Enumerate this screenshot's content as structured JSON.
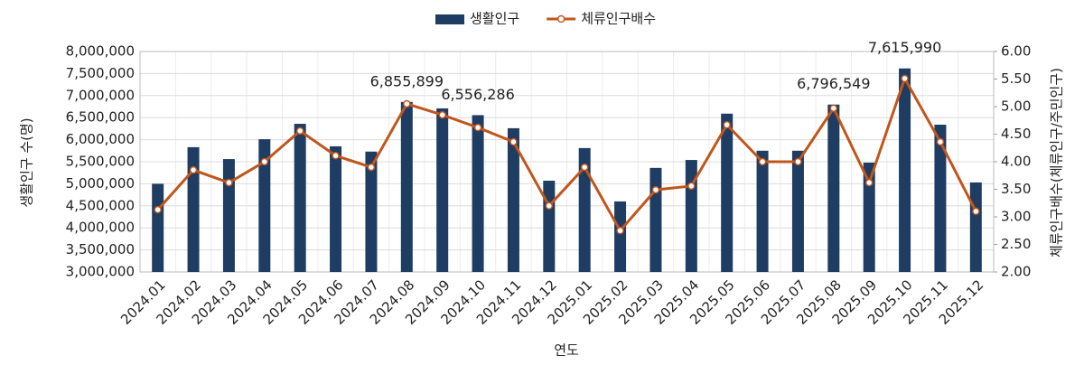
{
  "chart_data": {
    "type": "bar-line",
    "x_label": "연도",
    "y_label": "생활인구 수(명)",
    "y2_label": "체류인구배수(체류인구/주민인구)",
    "categories": [
      "2024.01",
      "2024.02",
      "2024.03",
      "2024.04",
      "2024.05",
      "2024.06",
      "2024.07",
      "2024.08",
      "2024.09",
      "2024.10",
      "2024.11",
      "2024.12",
      "2025.01",
      "2025.02",
      "2025.03",
      "2025.04",
      "2025.05",
      "2025.06",
      "2025.07",
      "2025.08",
      "2025.09",
      "2025.10",
      "2025.11",
      "2025.12"
    ],
    "series": [
      {
        "name": "생활인구",
        "type": "bar",
        "axis": "y",
        "color": "#1f3c63",
        "values": [
          5000000,
          5830000,
          5560000,
          6010000,
          6360000,
          5850000,
          5730000,
          6855899,
          6710000,
          6556286,
          6260000,
          5070000,
          5810000,
          4600000,
          5360000,
          5540000,
          6590000,
          5750000,
          5750000,
          6796549,
          5480000,
          7615990,
          6340000,
          5030000
        ],
        "value_labels": [
          null,
          null,
          null,
          null,
          null,
          null,
          null,
          "6,855,899",
          null,
          "6,556,286",
          null,
          null,
          null,
          null,
          null,
          null,
          null,
          null,
          null,
          "6,796,549",
          null,
          "7,615,990",
          null,
          null
        ]
      },
      {
        "name": "체류인구배수",
        "type": "line",
        "axis": "y2",
        "color": "#c0561c",
        "values": [
          3.13,
          3.85,
          3.62,
          4.0,
          4.56,
          4.11,
          3.9,
          5.05,
          4.85,
          4.62,
          4.36,
          3.2,
          3.9,
          2.75,
          3.49,
          3.56,
          4.67,
          4.0,
          4.0,
          4.97,
          3.62,
          5.51,
          4.36,
          3.1
        ]
      }
    ],
    "ylim": [
      3000000,
      8000000
    ],
    "yticks": [
      {
        "value": 3000000,
        "label": "3,000,000"
      },
      {
        "value": 3500000,
        "label": "3,500,000"
      },
      {
        "value": 4000000,
        "label": "4,000,000"
      },
      {
        "value": 4500000,
        "label": "4,500,000"
      },
      {
        "value": 5000000,
        "label": "5,000,000"
      },
      {
        "value": 5500000,
        "label": "5,500,000"
      },
      {
        "value": 6000000,
        "label": "6,000,000"
      },
      {
        "value": 6500000,
        "label": "6,500,000"
      },
      {
        "value": 7000000,
        "label": "7,000,000"
      },
      {
        "value": 7500000,
        "label": "7,500,000"
      },
      {
        "value": 8000000,
        "label": "8,000,000"
      }
    ],
    "y2lim": [
      2,
      6
    ],
    "y2ticks": [
      {
        "value": 2,
        "label": "2.00"
      },
      {
        "value": 2.5,
        "label": "2.50"
      },
      {
        "value": 3,
        "label": "3.00"
      },
      {
        "value": 3.5,
        "label": "3.50"
      },
      {
        "value": 4,
        "label": "4.00"
      },
      {
        "value": 4.5,
        "label": "4.50"
      },
      {
        "value": 5,
        "label": "5.00"
      },
      {
        "value": 5.5,
        "label": "5.50"
      },
      {
        "value": 6,
        "label": "6.00"
      }
    ],
    "grid": true,
    "legend": "top"
  }
}
